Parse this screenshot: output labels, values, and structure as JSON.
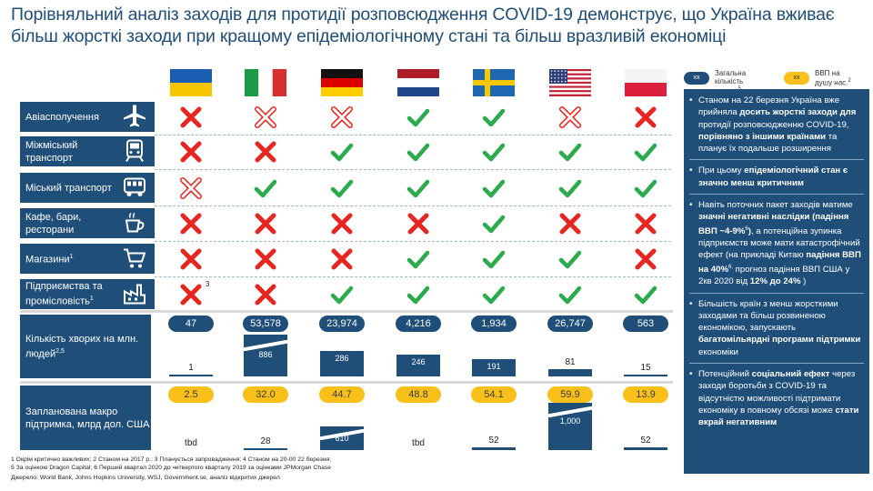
{
  "title": {
    "line1": "Порівняльний аналіз заходів для протидії розповсюдження COVID-19 демонструє, що Україна вживає",
    "line2": "більш жорсткі заходи при кращому епідеміологічному стані та більш вразливій економіці"
  },
  "legend": {
    "cases": {
      "pill": "xx",
      "text": "Загальна кількість хворих",
      "sup": "5",
      "color": "#1f4e79"
    },
    "gdp": {
      "pill": "xx",
      "text": "ВВП на душу нас.",
      "text2": "тис. дол.",
      "sup": "2",
      "color": "#f9c01a"
    }
  },
  "countries": [
    {
      "name": "Ukraine",
      "flag": "ukraine-flag"
    },
    {
      "name": "Italy",
      "flag": "italy-flag"
    },
    {
      "name": "Germany",
      "flag": "germany-flag"
    },
    {
      "name": "Netherlands",
      "flag": "netherlands-flag"
    },
    {
      "name": "Sweden",
      "flag": "sweden-flag"
    },
    {
      "name": "USA",
      "flag": "usa-flag"
    },
    {
      "name": "Poland",
      "flag": "poland-flag"
    }
  ],
  "measures": [
    {
      "label": "Авіасполучення",
      "icon": "airplane-icon",
      "marks": [
        "x",
        "xo",
        "xo",
        "check",
        "check",
        "xo",
        "x"
      ]
    },
    {
      "label": "Міжміський транспорт",
      "icon": "train-icon",
      "marks": [
        "x",
        "x",
        "check",
        "check",
        "check",
        "check",
        "check"
      ]
    },
    {
      "label": "Міський транспорт",
      "icon": "bus-icon",
      "marks": [
        "xo",
        "check",
        "check",
        "check",
        "check",
        "check",
        "check"
      ]
    },
    {
      "label": "Кафе, бари, ресторани",
      "icon": "coffee-cup-icon",
      "marks": [
        "x",
        "x",
        "x",
        "x",
        "check",
        "x",
        "x"
      ]
    },
    {
      "label": "Магазини",
      "sup": "1",
      "icon": "shopping-cart-icon",
      "marks": [
        "x",
        "x",
        "x",
        "check",
        "check",
        "check",
        "x"
      ]
    },
    {
      "label": "Підприємства та промісловість",
      "sup": "1",
      "icon": "factory-icon",
      "marks": [
        "x",
        "x",
        "check",
        "check",
        "check",
        "check",
        "check"
      ],
      "note": "3"
    }
  ],
  "cases_section": {
    "label": "Кількість хворих на млн. людей",
    "sup": "2,5",
    "totals": [
      "47",
      "53,578",
      "23,974",
      "4,216",
      "1,934",
      "26,747",
      "563"
    ],
    "per_million": [
      1,
      886,
      286,
      246,
      191,
      81,
      15
    ],
    "per_million_labels": [
      "1",
      "886",
      "286",
      "246",
      "191",
      "81",
      "15"
    ],
    "broken": [
      false,
      true,
      false,
      false,
      false,
      false,
      false
    ]
  },
  "support_section": {
    "label": "Запланована макро підтримка, млрд дол. США",
    "gdp_per_capita": [
      "2.5",
      "32.0",
      "44.7",
      "48.8",
      "54.1",
      "59.9",
      "13.9"
    ],
    "support": [
      null,
      28,
      610,
      null,
      52,
      1000,
      52
    ],
    "support_labels": [
      "tbd",
      "28",
      "610",
      "tbd",
      "52",
      "1,000",
      "52"
    ],
    "broken": [
      false,
      false,
      true,
      false,
      false,
      true,
      false
    ]
  },
  "panel": {
    "b1": {
      "p1": "Станом на 22 березня Україна вже прийняла ",
      "b1": "досить жорсткі заходи",
      "p2": " ",
      "b2": "для",
      "p3": " протидії розповсюдженню COVID-19, ",
      "b3": "порівняно з іншими країнами",
      "p4": " та планує їх подальше розширення"
    },
    "b2": {
      "p1": "При цьому ",
      "b1": "епідеміологічний стан є значно менш критичним"
    },
    "b3": {
      "p1": "Навіть поточних пакет заходів матиме ",
      "b1": "значні негативні наслідки (падіння ВВП ~4-9%",
      "s1": "6",
      "b1c": ")",
      "p2": ", а потенційна зупинка підприємств може мати катастрофічний ефект (на прикладі Китаю ",
      "b2": "падіння ВВП на 40%",
      "s2": "6,",
      "p3": " прогноз падіння ВВП США у 2кв 2020 від ",
      "b3": "12% до 24%",
      "p4": " )"
    },
    "b4": {
      "p1": "Більшість країн з менш жорсткими заходами та більш розвиненою економікою, запускають ",
      "b1": "багатомільярдні програми підтримки",
      "p2": " економіки"
    },
    "b5": {
      "p1": "Потенційний ",
      "b1": "соціальний ефект",
      "p2": " через заходи боротьби з COVID-19 та відсутністю можливості підтримати економіку в повному обсязі може ",
      "b2": "стати вкрай негативним"
    }
  },
  "footnotes": {
    "l1": "1 Окрім критично важливих; 2 Станом на 2017 р.;  3 Планується запровадження; 4 Станом на 20-00 22 березня;",
    "l2": "5 За оцінкою Dragon Capital; 6 Перший квартал 2020 до четвертого кварталу 2019 за оцінками JPMorgan Chase",
    "l3": "Джерело: World Bank, Johns Hopkins University, WSJ, Government.se, аналіз відкритих джерел"
  },
  "colors": {
    "navy": "#1f4e79",
    "gold": "#f9c01a",
    "red": "#e8251f",
    "green": "#2bab4c"
  }
}
